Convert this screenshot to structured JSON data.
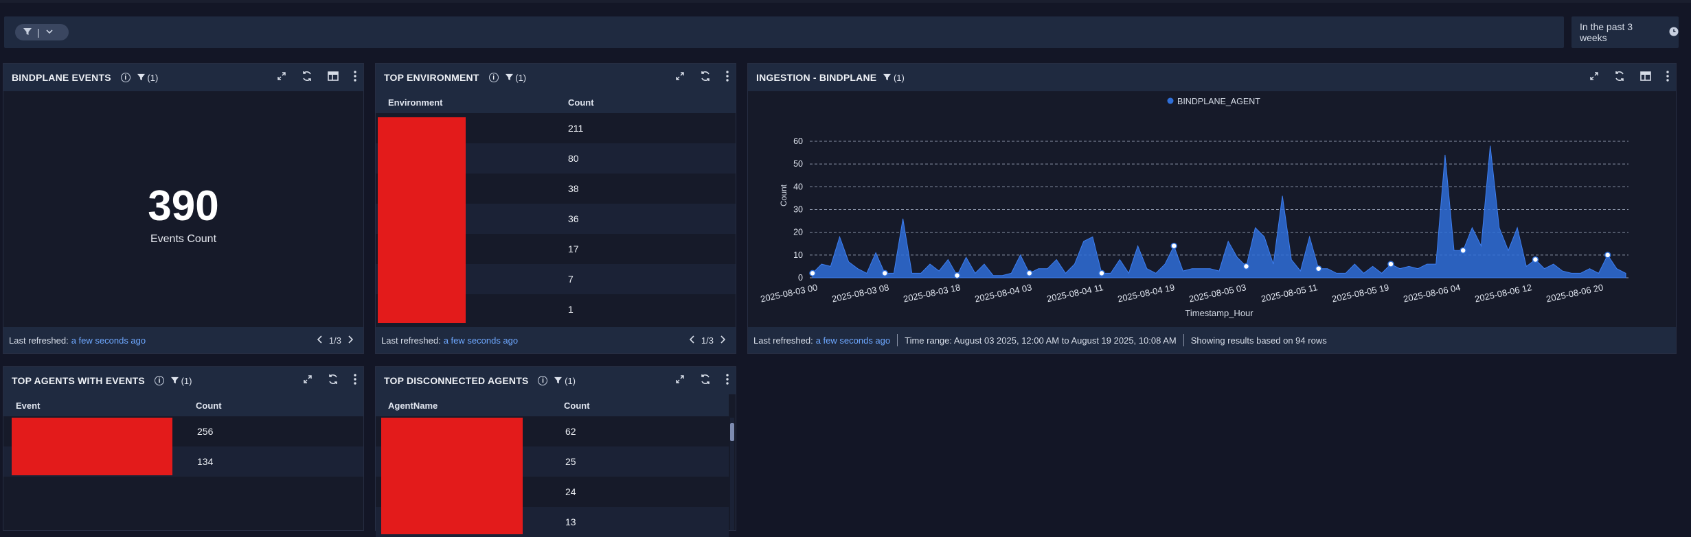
{
  "filter_bar": {
    "pill_separator": "|"
  },
  "time_range": {
    "label": "In the past 3 weeks"
  },
  "bindplane_events": {
    "title": "BINDPLANE EVENTS",
    "filter_count": "(1)",
    "value": "390",
    "label": "Events Count",
    "footer_label": "Last refreshed:",
    "footer_link": "a few seconds ago",
    "pager": "1/3"
  },
  "top_environment": {
    "title": "TOP ENVIRONMENT",
    "filter_count": "(1)",
    "columns": [
      "Environment",
      "Count"
    ],
    "counts": [
      "211",
      "80",
      "38",
      "36",
      "17",
      "7",
      "1"
    ],
    "footer_label": "Last refreshed:",
    "footer_link": "a few seconds ago",
    "pager": "1/3"
  },
  "ingestion": {
    "title": "INGESTION - BINDPLANE",
    "filter_count": "(1)",
    "footer_label": "Last refreshed:",
    "footer_link": "a few seconds ago",
    "time_range_text": "Time range: August 03 2025, 12:00 AM to August 19 2025, 10:08 AM",
    "results_text": "Showing results based on 94 rows"
  },
  "top_agents": {
    "title": "TOP AGENTS WITH EVENTS",
    "filter_count": "(1)",
    "columns": [
      "Event",
      "Count"
    ],
    "counts": [
      "256",
      "134"
    ]
  },
  "top_disconnected": {
    "title": "TOP DISCONNECTED AGENTS",
    "filter_count": "(1)",
    "columns": [
      "AgentName",
      "Count"
    ],
    "counts": [
      "62",
      "25",
      "24",
      "13"
    ]
  },
  "chart_data": {
    "type": "area",
    "title": "",
    "xlabel": "Timestamp_Hour",
    "ylabel": "Count",
    "ylim": [
      0,
      60
    ],
    "yticks": [
      0,
      10,
      20,
      30,
      40,
      50,
      60
    ],
    "legend_position": "top-center",
    "grid": true,
    "series": [
      {
        "name": "BINDPLANE_AGENT",
        "color": "#2f6fd8",
        "values": [
          2,
          6,
          5,
          18,
          7,
          4,
          2,
          11,
          2,
          2,
          26,
          2,
          2,
          6,
          3,
          8,
          1,
          9,
          2,
          6,
          1,
          1,
          2,
          10,
          2,
          4,
          4,
          8,
          2,
          6,
          16,
          18,
          2,
          2,
          8,
          2,
          14,
          4,
          2,
          6,
          14,
          3,
          4,
          4,
          4,
          3,
          16,
          9,
          5,
          22,
          18,
          6,
          36,
          8,
          3,
          18,
          4,
          4,
          2,
          2,
          6,
          2,
          5,
          2,
          6,
          4,
          5,
          4,
          6,
          6,
          54,
          12,
          12,
          22,
          14,
          58,
          22,
          12,
          22,
          5,
          8,
          4,
          6,
          3,
          2,
          2,
          4,
          2,
          10,
          4,
          2
        ]
      }
    ],
    "xtick_labels": [
      "2025-08-03 00",
      "2025-08-03 08",
      "2025-08-03 18",
      "2025-08-04 03",
      "2025-08-04 11",
      "2025-08-04 19",
      "2025-08-05 03",
      "2025-08-05 11",
      "2025-08-05 19",
      "2025-08-06 04",
      "2025-08-06 12",
      "2025-08-06 20"
    ]
  }
}
